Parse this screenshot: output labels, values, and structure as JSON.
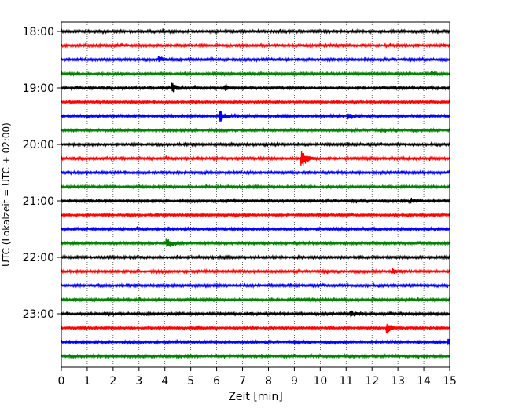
{
  "chart_data": {
    "type": "line",
    "title": "",
    "xlabel": "Zeit  [min]",
    "ylabel": "UTC (Lokalzeit = UTC + 02:00)",
    "xlim": [
      0,
      15
    ],
    "x_ticks": [
      0,
      1,
      2,
      3,
      4,
      5,
      6,
      7,
      8,
      9,
      10,
      11,
      12,
      13,
      14,
      15
    ],
    "y_tick_labels": [
      "18:00",
      "19:00",
      "20:00",
      "21:00",
      "22:00",
      "23:00"
    ],
    "grid": "vertical dotted",
    "trace_colors": [
      "#000000",
      "#ff0000",
      "#0000ff",
      "#008000"
    ],
    "trace_start_times": [
      "18:00",
      "18:15",
      "18:30",
      "18:45",
      "19:00",
      "19:15",
      "19:30",
      "19:45",
      "20:00",
      "20:15",
      "20:30",
      "20:45",
      "21:00",
      "21:15",
      "21:30",
      "21:45",
      "22:00",
      "22:15",
      "22:30",
      "22:45",
      "23:00",
      "23:15",
      "23:30",
      "23:45"
    ],
    "events": [
      {
        "row": 2,
        "minute": 3.8,
        "amplitude": 0.3
      },
      {
        "row": 3,
        "minute": 14.3,
        "amplitude": 0.25
      },
      {
        "row": 4,
        "minute": 4.3,
        "amplitude": 0.45
      },
      {
        "row": 4,
        "minute": 6.3,
        "amplitude": 0.3
      },
      {
        "row": 6,
        "minute": 6.15,
        "amplitude": 0.6
      },
      {
        "row": 6,
        "minute": 11.1,
        "amplitude": 0.35
      },
      {
        "row": 9,
        "minute": 9.3,
        "amplitude": 1.0
      },
      {
        "row": 12,
        "minute": 13.5,
        "amplitude": 0.3
      },
      {
        "row": 15,
        "minute": 4.1,
        "amplitude": 0.5
      },
      {
        "row": 17,
        "minute": 12.8,
        "amplitude": 0.35
      },
      {
        "row": 20,
        "minute": 11.2,
        "amplitude": 0.3
      },
      {
        "row": 21,
        "minute": 12.6,
        "amplitude": 0.5
      },
      {
        "row": 22,
        "minute": 14.95,
        "amplitude": 0.5
      }
    ]
  }
}
